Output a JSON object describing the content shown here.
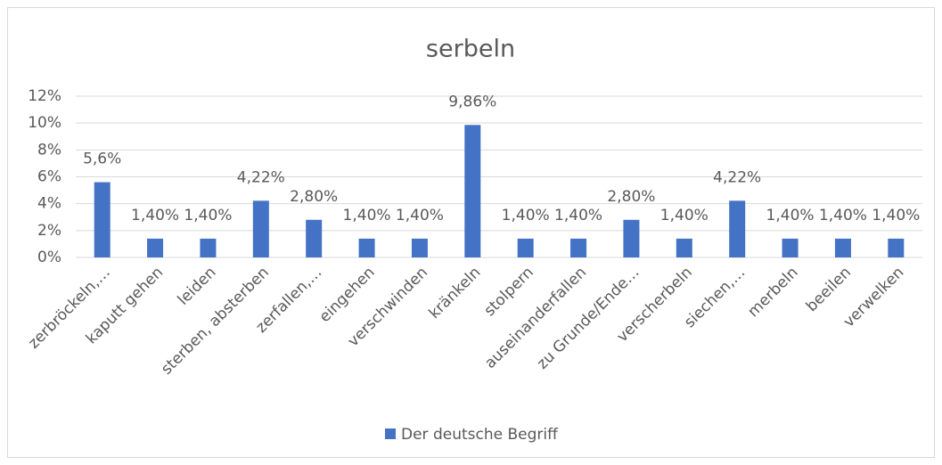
{
  "chart_data": {
    "type": "bar",
    "title": "serbeln",
    "categories": [
      "zerbröckeln,…",
      "kaputt gehen",
      "leiden",
      "sterben, absterben",
      "zerfallen,…",
      "eingehen",
      "verschwinden",
      "kränkeln",
      "stolpern",
      "auseinanderfallen",
      "zu Grunde/Ende…",
      "verscherbeln",
      "siechen,…",
      "merbeln",
      "beeilen",
      "verwelken"
    ],
    "series": [
      {
        "name": "Der deutsche Begriff",
        "color": "#4472c4",
        "values": [
          5.6,
          1.4,
          1.4,
          4.22,
          2.8,
          1.4,
          1.4,
          9.86,
          1.4,
          1.4,
          2.8,
          1.4,
          4.22,
          1.4,
          1.4,
          1.4
        ],
        "value_labels": [
          "5,6%",
          "1,40%",
          "1,40%",
          "4,22%",
          "2,80%",
          "1,40%",
          "1,40%",
          "9,86%",
          "1,40%",
          "1,40%",
          "2,80%",
          "1,40%",
          "4,22%",
          "1,40%",
          "1,40%",
          "1,40%"
        ]
      }
    ],
    "ylim": [
      0,
      12
    ],
    "yticks": [
      {
        "value": 0,
        "label": "0%"
      },
      {
        "value": 2,
        "label": "2%"
      },
      {
        "value": 4,
        "label": "4%"
      },
      {
        "value": 6,
        "label": "6%"
      },
      {
        "value": 8,
        "label": "8%"
      },
      {
        "value": 10,
        "label": "10%"
      },
      {
        "value": 12,
        "label": "12%"
      }
    ],
    "grid": true,
    "legend": "bottom"
  }
}
